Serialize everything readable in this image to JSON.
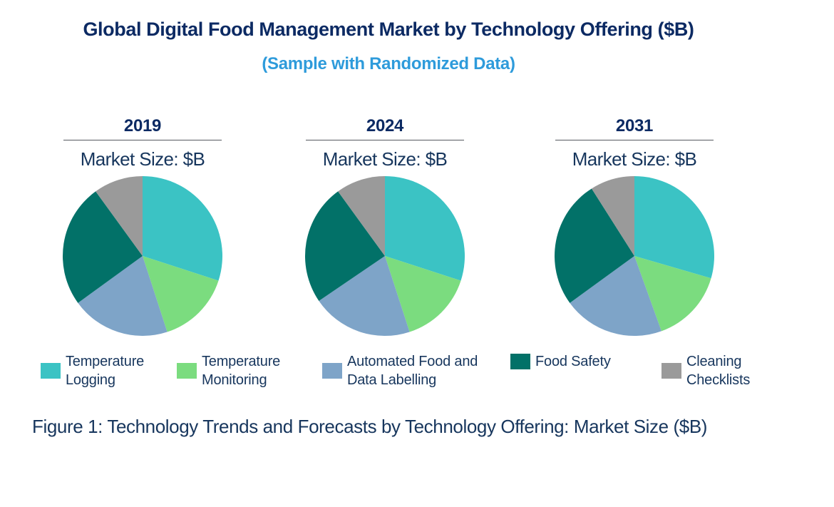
{
  "page": {
    "title": "Global Digital Food Management Market by Technology Offering ($B)",
    "subtitle": "(Sample with Randomized Data)",
    "caption": "Figure 1: Technology Trends and Forecasts by Technology Offering: Market Size ($B)"
  },
  "colors": {
    "title_navy": "#0C2A63",
    "text_navy": "#17365D",
    "subtitle_blue": "#2E9BDB",
    "underline_gray": "#555A60",
    "background": "#FFFFFF"
  },
  "chart_data": {
    "type": "pie",
    "title": "Global Digital Food Management Market by Technology Offering ($B)",
    "subtitle": "(Sample with Randomized Data)",
    "unit": "percent share of market size (slices unlabeled; shares estimated from slice angles, $B values not printed)",
    "categories": [
      "Temperature Logging",
      "Temperature Monitoring",
      "Automated Food and Data Labelling",
      "Food Safety",
      "Cleaning Checklists"
    ],
    "colors": [
      "#3BC3C4",
      "#7BDC7F",
      "#7EA4C8",
      "#027168",
      "#9A9A9A"
    ],
    "start_angle_deg": 0,
    "direction": "clockwise",
    "legend_position": "bottom",
    "charts": [
      {
        "year": "2019",
        "axis_label": "Market Size: $B",
        "values": [
          30,
          15,
          20,
          25,
          10
        ]
      },
      {
        "year": "2024",
        "axis_label": "Market Size: $B",
        "values": [
          30,
          15,
          20.5,
          24.5,
          10
        ]
      },
      {
        "year": "2031",
        "axis_label": "Market Size: $B",
        "values": [
          29.5,
          15,
          20.5,
          26,
          9
        ]
      }
    ]
  },
  "legend": {
    "items": [
      {
        "label": "Temperature Logging",
        "color": "#3BC3C4"
      },
      {
        "label": "Temperature Monitoring",
        "color": "#7BDC7F"
      },
      {
        "label": "Automated Food and Data Labelling",
        "color": "#7EA4C8"
      },
      {
        "label": "Food Safety",
        "color": "#027168"
      },
      {
        "label": "Cleaning Checklists",
        "color": "#9A9A9A"
      }
    ]
  }
}
